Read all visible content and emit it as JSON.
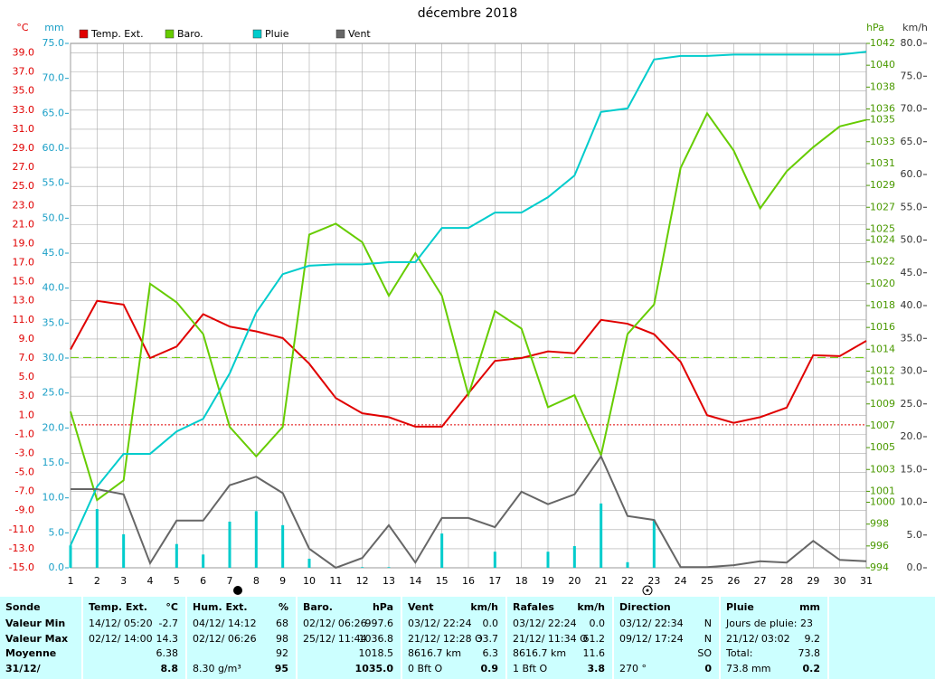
{
  "chart_data": {
    "type": "line",
    "title": "décembre 2018",
    "x": [
      1,
      2,
      3,
      4,
      5,
      6,
      7,
      8,
      9,
      10,
      11,
      12,
      13,
      14,
      15,
      16,
      17,
      18,
      19,
      20,
      21,
      22,
      23,
      24,
      25,
      26,
      27,
      28,
      29,
      30,
      31
    ],
    "xlim": [
      1,
      31
    ],
    "xticks": [
      1,
      2,
      3,
      4,
      5,
      6,
      7,
      8,
      9,
      10,
      11,
      12,
      13,
      14,
      15,
      16,
      17,
      18,
      19,
      20,
      21,
      22,
      23,
      24,
      25,
      26,
      27,
      28,
      29,
      30,
      31
    ],
    "ylabel": "°C",
    "ylim": [
      -15,
      40
    ],
    "yticks": [
      {
        "value": -15,
        "label": "-15.0"
      },
      {
        "value": -13,
        "label": "-13.0"
      },
      {
        "value": -11,
        "label": "-11.0"
      },
      {
        "value": -9,
        "label": "-9.0"
      },
      {
        "value": -7,
        "label": "-7.0"
      },
      {
        "value": -5,
        "label": "-5.0"
      },
      {
        "value": -3,
        "label": "-3.0"
      },
      {
        "value": -1,
        "label": "-1.0"
      },
      {
        "value": 1,
        "label": "1.0"
      },
      {
        "value": 3,
        "label": "3.0"
      },
      {
        "value": 5,
        "label": "5.0"
      },
      {
        "value": 7,
        "label": "7.0"
      },
      {
        "value": 9,
        "label": "9.0"
      },
      {
        "value": 11,
        "label": "11.0"
      },
      {
        "value": 13,
        "label": "13.0"
      },
      {
        "value": 15,
        "label": "15.0"
      },
      {
        "value": 17,
        "label": "17.0"
      },
      {
        "value": 19,
        "label": "19.0"
      },
      {
        "value": 21,
        "label": "21.0"
      },
      {
        "value": 23,
        "label": "23.0"
      },
      {
        "value": 25,
        "label": "25.0"
      },
      {
        "value": 27,
        "label": "27.0"
      },
      {
        "value": 29,
        "label": "29.0"
      },
      {
        "value": 31,
        "label": "31.0"
      },
      {
        "value": 33,
        "label": "33.0"
      },
      {
        "value": 35,
        "label": "35.0"
      },
      {
        "value": 37,
        "label": "37.0"
      },
      {
        "value": 39,
        "label": "39.0"
      }
    ],
    "y3label": "mm",
    "y3lim": [
      0,
      75
    ],
    "y3ticks": [
      {
        "value": 0,
        "label": "0.0"
      },
      {
        "value": 5,
        "label": "5.0"
      },
      {
        "value": 10,
        "label": "10.0"
      },
      {
        "value": 15,
        "label": "15.0"
      },
      {
        "value": 20,
        "label": "20.0"
      },
      {
        "value": 25,
        "label": "25.0"
      },
      {
        "value": 30,
        "label": "30.0"
      },
      {
        "value": 35,
        "label": "35.0"
      },
      {
        "value": 40,
        "label": "40.0"
      },
      {
        "value": 45,
        "label": "45.0"
      },
      {
        "value": 50,
        "label": "50.0"
      },
      {
        "value": 55,
        "label": "55.0"
      },
      {
        "value": 60,
        "label": "60.0"
      },
      {
        "value": 65,
        "label": "65.0"
      },
      {
        "value": 70,
        "label": "70.0"
      },
      {
        "value": 75,
        "label": "75.0"
      }
    ],
    "y2label": "hPa",
    "y2lim": [
      994,
      1042
    ],
    "y2ticks": [
      994,
      996,
      998,
      1000,
      1001,
      1003,
      1005,
      1007,
      1009,
      1011,
      1012,
      1014,
      1016,
      1018,
      1020,
      1022,
      1024,
      1025,
      1027,
      1029,
      1031,
      1033,
      1035,
      1036,
      1038,
      1040,
      1042
    ],
    "y4label": "km/h",
    "y4lim": [
      0,
      80
    ],
    "y4ticks": [
      {
        "value": 0,
        "label": "0.0"
      },
      {
        "value": 5,
        "label": "5.0"
      },
      {
        "value": 10,
        "label": "10.0"
      },
      {
        "value": 15,
        "label": "15.0"
      },
      {
        "value": 20,
        "label": "20.0"
      },
      {
        "value": 25,
        "label": "25.0"
      },
      {
        "value": 30,
        "label": "30.0"
      },
      {
        "value": 35,
        "label": "35.0"
      },
      {
        "value": 40,
        "label": "40.0"
      },
      {
        "value": 45,
        "label": "45.0"
      },
      {
        "value": 50,
        "label": "50.0"
      },
      {
        "value": 55,
        "label": "55.0"
      },
      {
        "value": 60,
        "label": "60.0"
      },
      {
        "value": 65,
        "label": "65.0"
      },
      {
        "value": 70,
        "label": "70.0"
      },
      {
        "value": 75,
        "label": "75.0"
      },
      {
        "value": 80,
        "label": "80.0"
      }
    ],
    "grid": true,
    "series": [
      {
        "name": "Temp. Ext.",
        "color": "#e00000",
        "axis": "y",
        "values": [
          7.9,
          13.0,
          12.6,
          7.0,
          8.2,
          11.6,
          10.3,
          9.8,
          9.1,
          6.4,
          2.8,
          1.2,
          0.8,
          -0.2,
          -0.2,
          3.3,
          6.7,
          7.0,
          7.7,
          7.5,
          11.0,
          10.6,
          9.5,
          6.6,
          1.0,
          0.2,
          0.8,
          1.8,
          7.3,
          7.2,
          8.8
        ]
      },
      {
        "name": "Baro.",
        "color": "#66cc00",
        "axis": "y2",
        "values": [
          1008.3,
          1000.2,
          1002.0,
          1020.0,
          1018.3,
          1015.4,
          1006.9,
          1004.2,
          1006.9,
          1024.5,
          1025.5,
          1023.8,
          1018.9,
          1022.8,
          1018.9,
          1009.8,
          1017.5,
          1015.9,
          1008.7,
          1009.8,
          1004.3,
          1015.4,
          1018.1,
          1030.6,
          1035.6,
          1032.2,
          1026.9,
          1030.3,
          1032.5,
          1034.4,
          1035.0
        ]
      },
      {
        "name": "Pluie",
        "color": "#00cccc",
        "axis": "y3",
        "values": [
          3.2,
          11.6,
          16.3,
          16.3,
          19.5,
          21.3,
          27.8,
          36.5,
          42.0,
          43.2,
          43.4,
          43.4,
          43.7,
          43.7,
          48.6,
          48.6,
          50.8,
          50.8,
          53.0,
          56.1,
          65.2,
          65.7,
          72.7,
          73.2,
          73.2,
          73.4,
          73.4,
          73.4,
          73.4,
          73.4,
          73.8
        ]
      },
      {
        "name": "Vent",
        "color": "#666666",
        "axis": "y4",
        "values": [
          12.0,
          12.0,
          11.2,
          0.7,
          7.2,
          7.2,
          12.6,
          13.9,
          11.4,
          2.9,
          0.0,
          1.5,
          6.5,
          0.8,
          7.6,
          7.6,
          6.2,
          11.6,
          9.7,
          11.2,
          17.0,
          7.9,
          7.3,
          0.1,
          0.1,
          0.4,
          1.0,
          0.8,
          4.1,
          1.2,
          1.0
        ]
      }
    ],
    "daily_rain": {
      "color": "#00cccc",
      "axis": "y3",
      "values": [
        3.2,
        8.4,
        4.8,
        0,
        3.4,
        1.9,
        6.6,
        8.1,
        6.1,
        1.3,
        0,
        0.1,
        0.1,
        0,
        4.9,
        0,
        2.3,
        0,
        2.3,
        3.1,
        9.2,
        0.8,
        6.9,
        0,
        0,
        0,
        0,
        0,
        0,
        0,
        0
      ]
    },
    "ref_lines": [
      {
        "axis": "y",
        "value": 0,
        "color": "#e00000",
        "dash": "2,2"
      },
      {
        "axis": "y2",
        "value": 1013.25,
        "color": "#66cc00",
        "dash": "9,5"
      }
    ]
  },
  "stats": {
    "sonde": {
      "title": "Sonde",
      "rows": [
        "Valeur Min",
        "Valeur Max",
        "Moyenne",
        "31/12/"
      ]
    },
    "columns": [
      {
        "title": "Temp. Ext.",
        "unit": "°C",
        "rows": [
          {
            "label": "14/12/ 05:20",
            "value": "-2.7"
          },
          {
            "label": "02/12/ 14:00",
            "value": "14.3"
          },
          {
            "value": "6.38"
          },
          {
            "value": "8.8"
          }
        ]
      },
      {
        "title": "Hum. Ext.",
        "unit": "%",
        "rows": [
          {
            "label": "04/12/ 14:12",
            "value": "68"
          },
          {
            "label": "02/12/ 06:26",
            "value": "98"
          },
          {
            "value": "92"
          },
          {
            "label": "8.30 g/m³",
            "value": "95"
          }
        ]
      },
      {
        "title": "Baro.",
        "unit": "hPa",
        "rows": [
          {
            "label": "02/12/ 06:26",
            "value": "997.6"
          },
          {
            "label": "25/12/ 11:44",
            "value": "1036.8"
          },
          {
            "value": "1018.5"
          },
          {
            "value": "1035.0"
          }
        ]
      },
      {
        "title": "Vent",
        "unit": "km/h",
        "rows": [
          {
            "label": "03/12/ 22:24",
            "value": "0.0"
          },
          {
            "label": "21/12/ 12:28 O",
            "value": "33.7"
          },
          {
            "label": "8616.7 km",
            "value": "6.3"
          },
          {
            "label": "0 Bft O",
            "value": "0.9"
          }
        ]
      },
      {
        "title": "Rafales",
        "unit": "km/h",
        "rows": [
          {
            "label": "03/12/ 22:24",
            "value": "0.0"
          },
          {
            "label": "21/12/ 11:34 O",
            "value": "61.2"
          },
          {
            "label": "8616.7 km",
            "value": "11.6"
          },
          {
            "label": "1 Bft O",
            "value": "3.8"
          }
        ]
      },
      {
        "title": "Direction",
        "rows": [
          {
            "label": "03/12/ 22:34",
            "value": "N"
          },
          {
            "label": "09/12/ 17:24",
            "value": "N"
          },
          {
            "value": "SO"
          },
          {
            "label": "270 °",
            "value": "0"
          }
        ]
      },
      {
        "title": "Pluie",
        "unit": "mm",
        "rows": [
          {
            "label": "Jours de pluie: 23"
          },
          {
            "label": "21/12/ 03:02",
            "value": "9.2"
          },
          {
            "label": "Total:",
            "value": "73.8"
          },
          {
            "label": "73.8 mm",
            "value": "0.2"
          }
        ]
      }
    ]
  }
}
